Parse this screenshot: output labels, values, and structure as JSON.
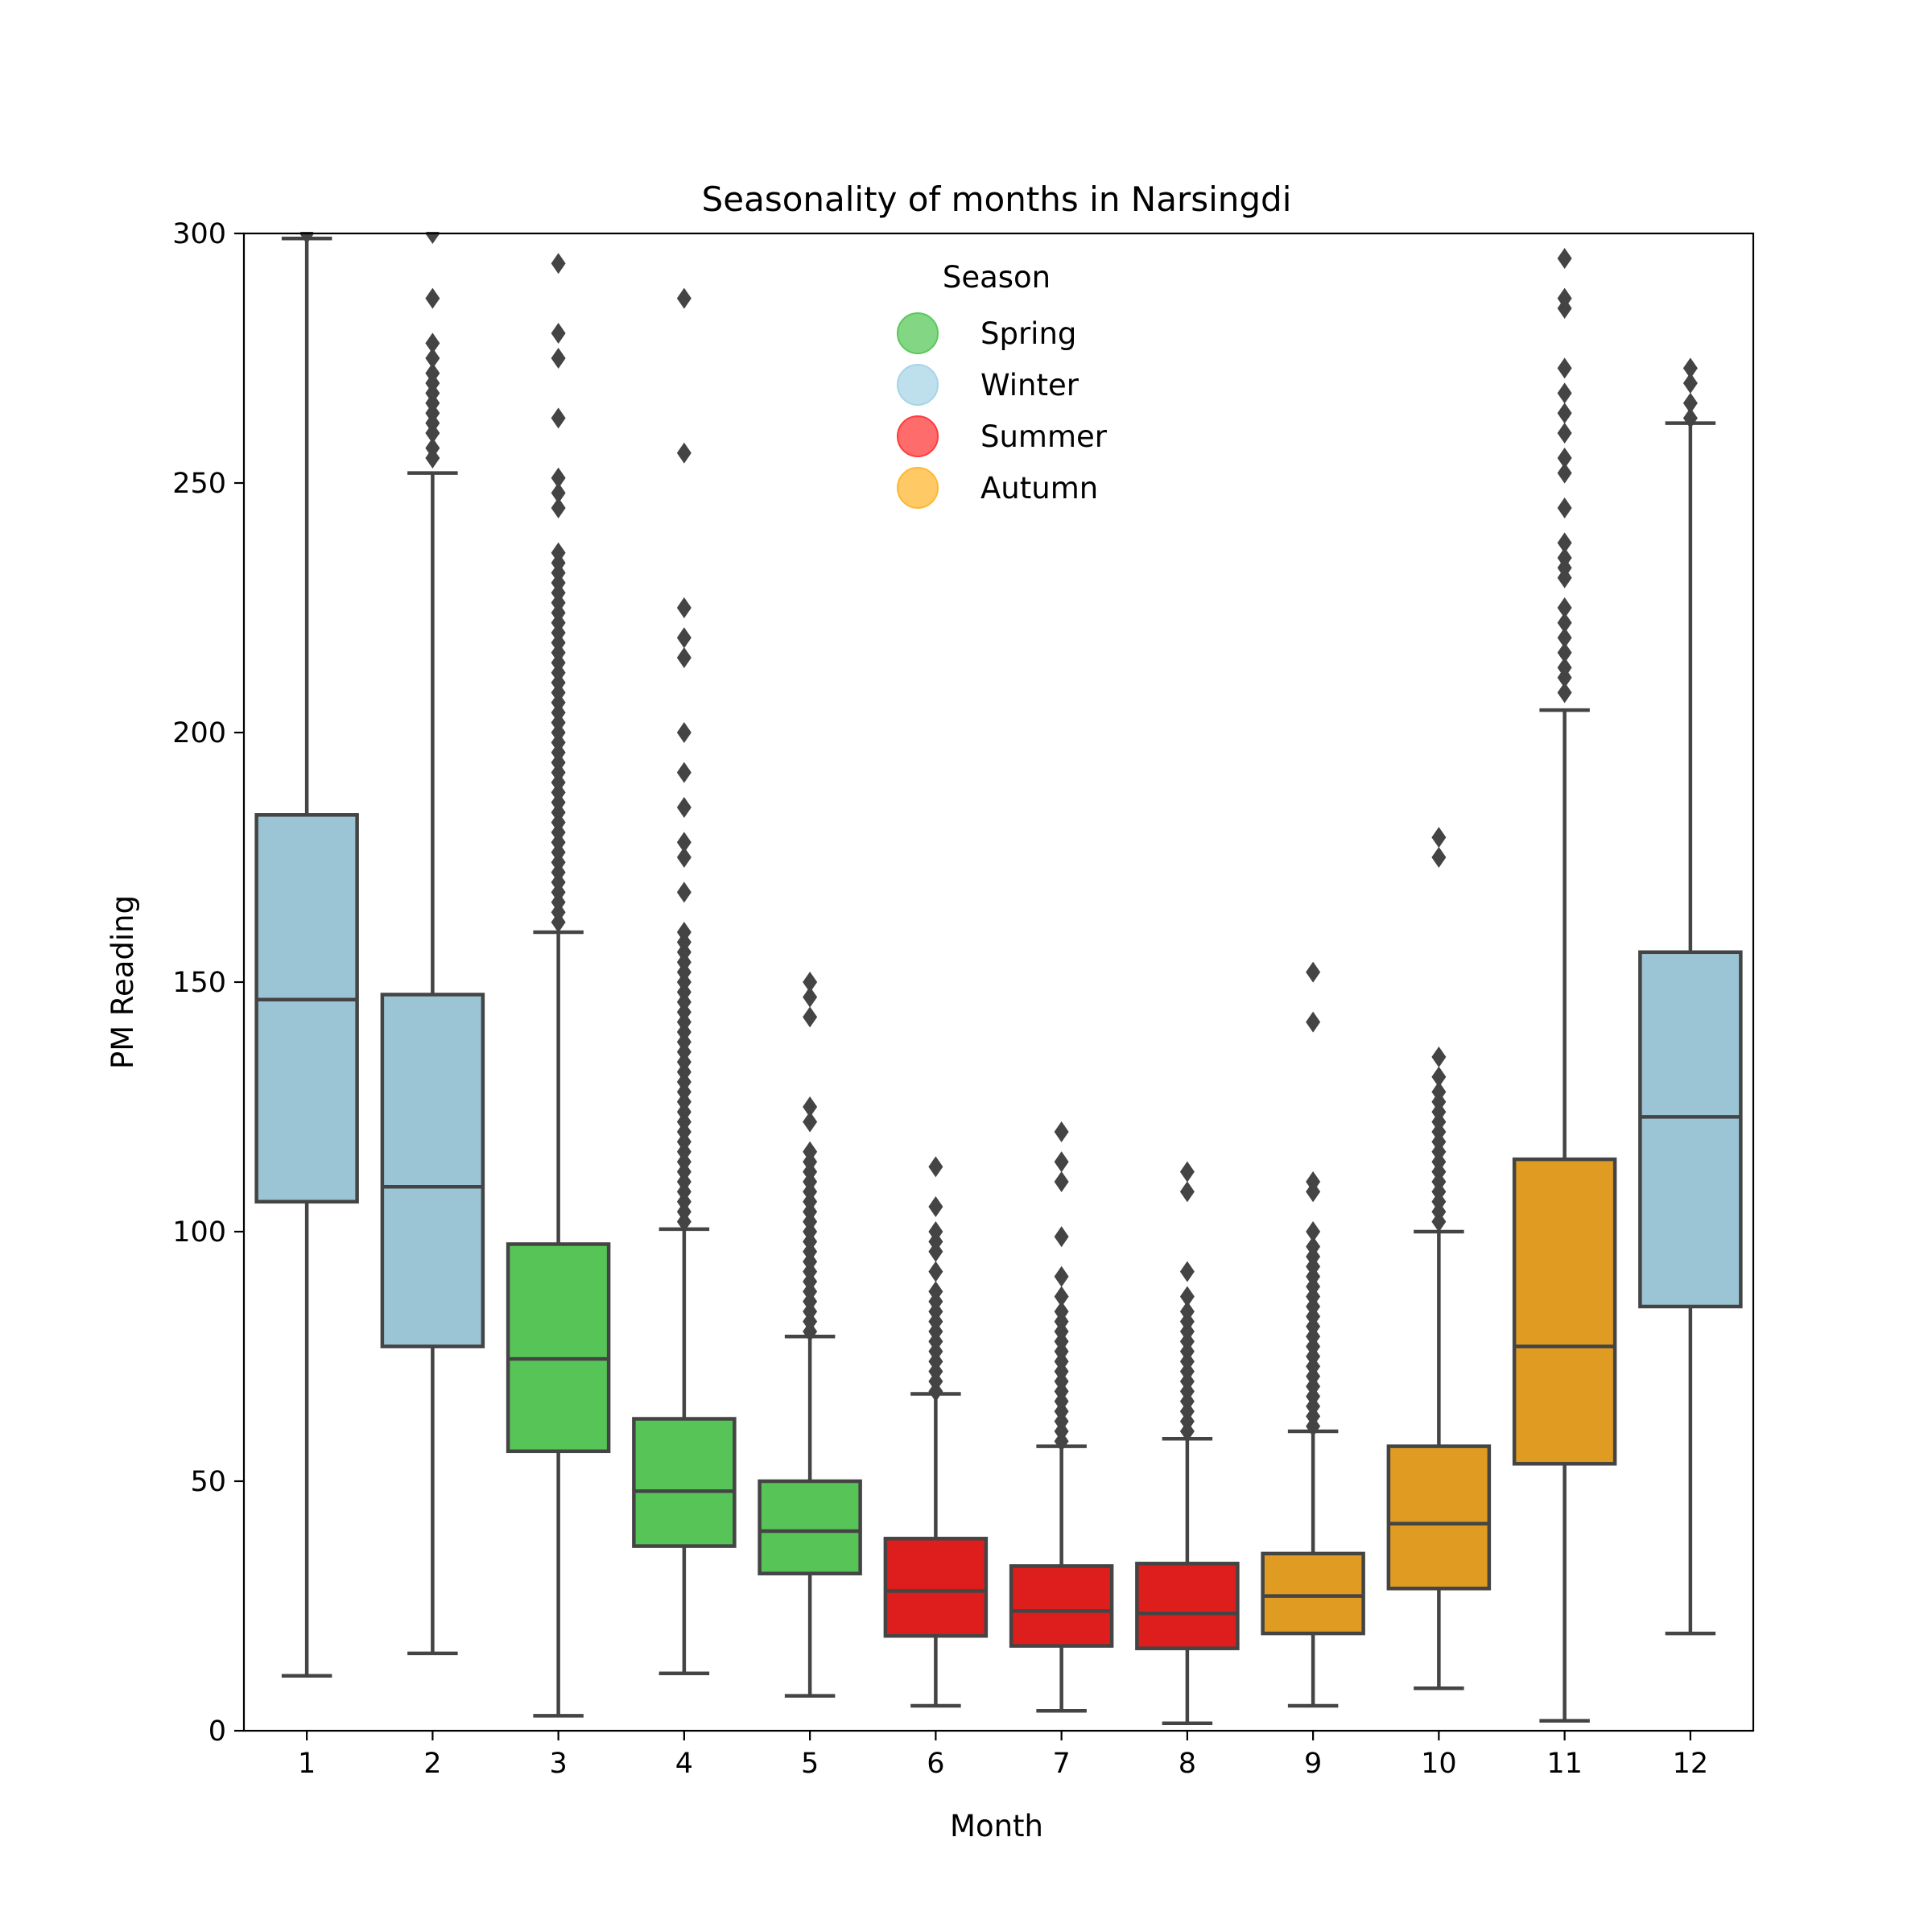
{
  "chart_data": {
    "type": "boxplot",
    "title": "Seasonality of months in Narsingdi",
    "xlabel": "Month",
    "ylabel": "PM Reading",
    "ylim": [
      0,
      300
    ],
    "y_ticks": [
      0,
      50,
      100,
      150,
      200,
      250,
      300
    ],
    "categories": [
      "1",
      "2",
      "3",
      "4",
      "5",
      "6",
      "7",
      "8",
      "9",
      "10",
      "11",
      "12"
    ],
    "legend": {
      "title": "Season",
      "placement": "top-center",
      "items": [
        {
          "label": "Spring",
          "color": "#5ac85a"
        },
        {
          "label": "Winter",
          "color": "#a8d4e6"
        },
        {
          "label": "Summer",
          "color": "#ff3b3b"
        },
        {
          "label": "Autumn",
          "color": "#ffb733"
        }
      ]
    },
    "season_colors": {
      "Spring": "#57c457",
      "Winter": "#9bc4d4",
      "Summer": "#de1d1d",
      "Autumn": "#df9b22"
    },
    "line_color": "#444444",
    "boxes": [
      {
        "month": "1",
        "season": "Winter",
        "whisker_low": 11,
        "q1": 106,
        "median": 146.5,
        "q3": 183.5,
        "whisker_high": 299,
        "outliers": [
          300
        ]
      },
      {
        "month": "2",
        "season": "Winter",
        "whisker_low": 15.5,
        "q1": 77,
        "median": 109,
        "q3": 147.5,
        "whisker_high": 252,
        "outliers": [
          255,
          257,
          260,
          262,
          264,
          266,
          268,
          270,
          272,
          275,
          278,
          287,
          300
        ]
      },
      {
        "month": "3",
        "season": "Spring",
        "whisker_low": 3,
        "q1": 56,
        "median": 74.5,
        "q3": 97.5,
        "whisker_high": 160,
        "outliers": [
          162,
          164,
          166,
          168,
          170,
          172,
          174,
          176,
          178,
          180,
          182,
          184,
          186,
          188,
          190,
          192,
          194,
          196,
          198,
          200,
          202,
          204,
          206,
          208,
          210,
          212,
          214,
          216,
          218,
          220,
          222,
          224,
          226,
          228,
          230,
          232,
          234,
          236,
          245,
          248,
          251,
          263,
          275,
          280,
          294
        ]
      },
      {
        "month": "4",
        "season": "Spring",
        "whisker_low": 11.5,
        "q1": 37,
        "median": 48,
        "q3": 62.5,
        "whisker_high": 100.5,
        "outliers": [
          102,
          104,
          106,
          108,
          110,
          112,
          114,
          116,
          118,
          120,
          122,
          124,
          126,
          128,
          130,
          132,
          134,
          136,
          138,
          140,
          142,
          144,
          146,
          148,
          150,
          152,
          154,
          156,
          158,
          160,
          168,
          175,
          178,
          185,
          192,
          200,
          215,
          219,
          225,
          256,
          287
        ]
      },
      {
        "month": "5",
        "season": "Spring",
        "whisker_low": 7,
        "q1": 31.5,
        "median": 40,
        "q3": 50,
        "whisker_high": 79,
        "outliers": [
          80,
          82,
          84,
          86,
          88,
          90,
          92,
          94,
          96,
          98,
          100,
          102,
          104,
          106,
          108,
          110,
          112,
          114,
          116,
          122,
          125,
          143,
          147,
          150
        ]
      },
      {
        "month": "6",
        "season": "Summer",
        "whisker_low": 5,
        "q1": 19,
        "median": 28,
        "q3": 38.5,
        "whisker_high": 67.5,
        "outliers": [
          68,
          70,
          72,
          74,
          76,
          78,
          80,
          82,
          84,
          86,
          88,
          92,
          96,
          98,
          100,
          105,
          113
        ]
      },
      {
        "month": "7",
        "season": "Summer",
        "whisker_low": 4,
        "q1": 17,
        "median": 24,
        "q3": 33,
        "whisker_high": 57,
        "outliers": [
          58,
          60,
          62,
          64,
          66,
          68,
          70,
          72,
          74,
          76,
          78,
          80,
          82,
          84,
          87,
          91,
          99,
          110,
          114,
          120
        ]
      },
      {
        "month": "8",
        "season": "Summer",
        "whisker_low": 1.5,
        "q1": 16.5,
        "median": 23.5,
        "q3": 33.5,
        "whisker_high": 58.5,
        "outliers": [
          60,
          62,
          64,
          66,
          68,
          70,
          72,
          74,
          76,
          78,
          80,
          82,
          84,
          87,
          92,
          108,
          112
        ]
      },
      {
        "month": "9",
        "season": "Autumn",
        "whisker_low": 5,
        "q1": 19.5,
        "median": 27,
        "q3": 35.5,
        "whisker_high": 60,
        "outliers": [
          61,
          63,
          65,
          67,
          69,
          71,
          73,
          75,
          77,
          79,
          81,
          83,
          85,
          87,
          89,
          91,
          93,
          95,
          97,
          100,
          108,
          110,
          142,
          152
        ]
      },
      {
        "month": "10",
        "season": "Autumn",
        "whisker_low": 8.5,
        "q1": 28.5,
        "median": 41.5,
        "q3": 57,
        "whisker_high": 100,
        "outliers": [
          102,
          104,
          106,
          108,
          110,
          112,
          114,
          116,
          118,
          120,
          122,
          124,
          126,
          128,
          131,
          135,
          175,
          179
        ]
      },
      {
        "month": "11",
        "season": "Autumn",
        "whisker_low": 2,
        "q1": 53.5,
        "median": 77,
        "q3": 114.5,
        "whisker_high": 204.5,
        "outliers": [
          208,
          211,
          213,
          216,
          219,
          222,
          225,
          231,
          233,
          235,
          238,
          245,
          252,
          255,
          260,
          264,
          268,
          273,
          285,
          287,
          295
        ]
      },
      {
        "month": "12",
        "season": "Winter",
        "whisker_low": 19.5,
        "q1": 85,
        "median": 123,
        "q3": 156,
        "whisker_high": 262,
        "outliers": [
          263,
          266,
          270,
          273
        ]
      }
    ]
  }
}
